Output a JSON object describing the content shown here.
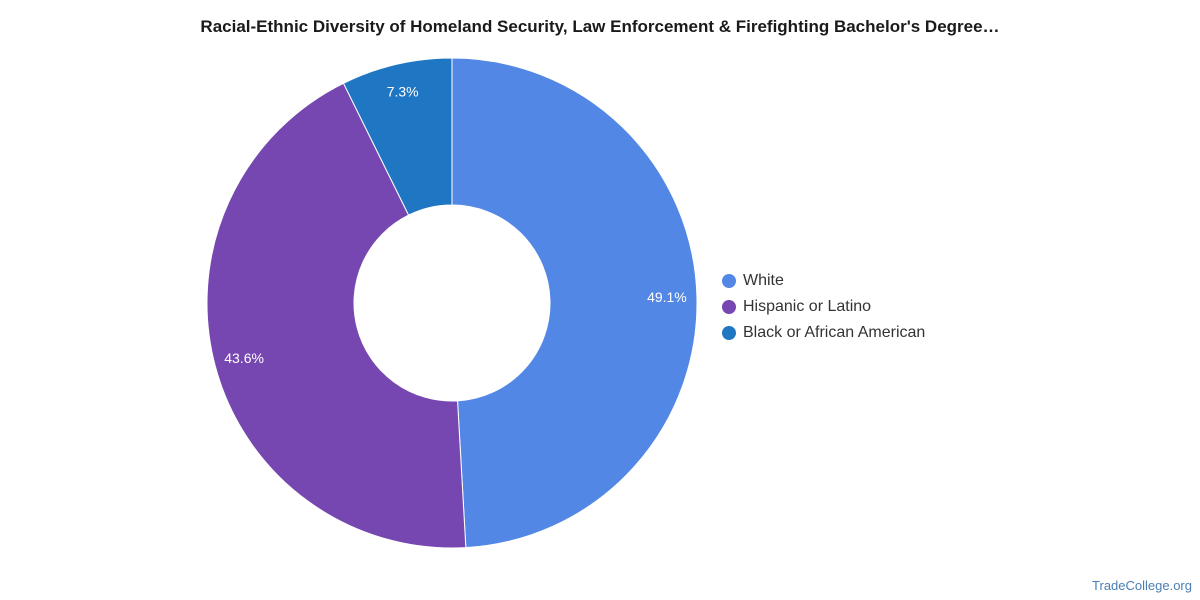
{
  "chart_data": {
    "type": "pie",
    "title": "Racial-Ethnic Diversity of Homeland Security, Law Enforcement & Firefighting Bachelor's Degree…",
    "categories": [
      "White",
      "Hispanic or Latino",
      "Black or African American"
    ],
    "values": [
      49.1,
      43.6,
      7.3
    ],
    "value_labels": [
      "49.1%",
      "43.6%",
      "7.3%"
    ],
    "colors": [
      "#5387e5",
      "#7647b0",
      "#1f77c4"
    ],
    "legend_position": "right",
    "hole": true
  },
  "watermark": "TradeCollege.org"
}
